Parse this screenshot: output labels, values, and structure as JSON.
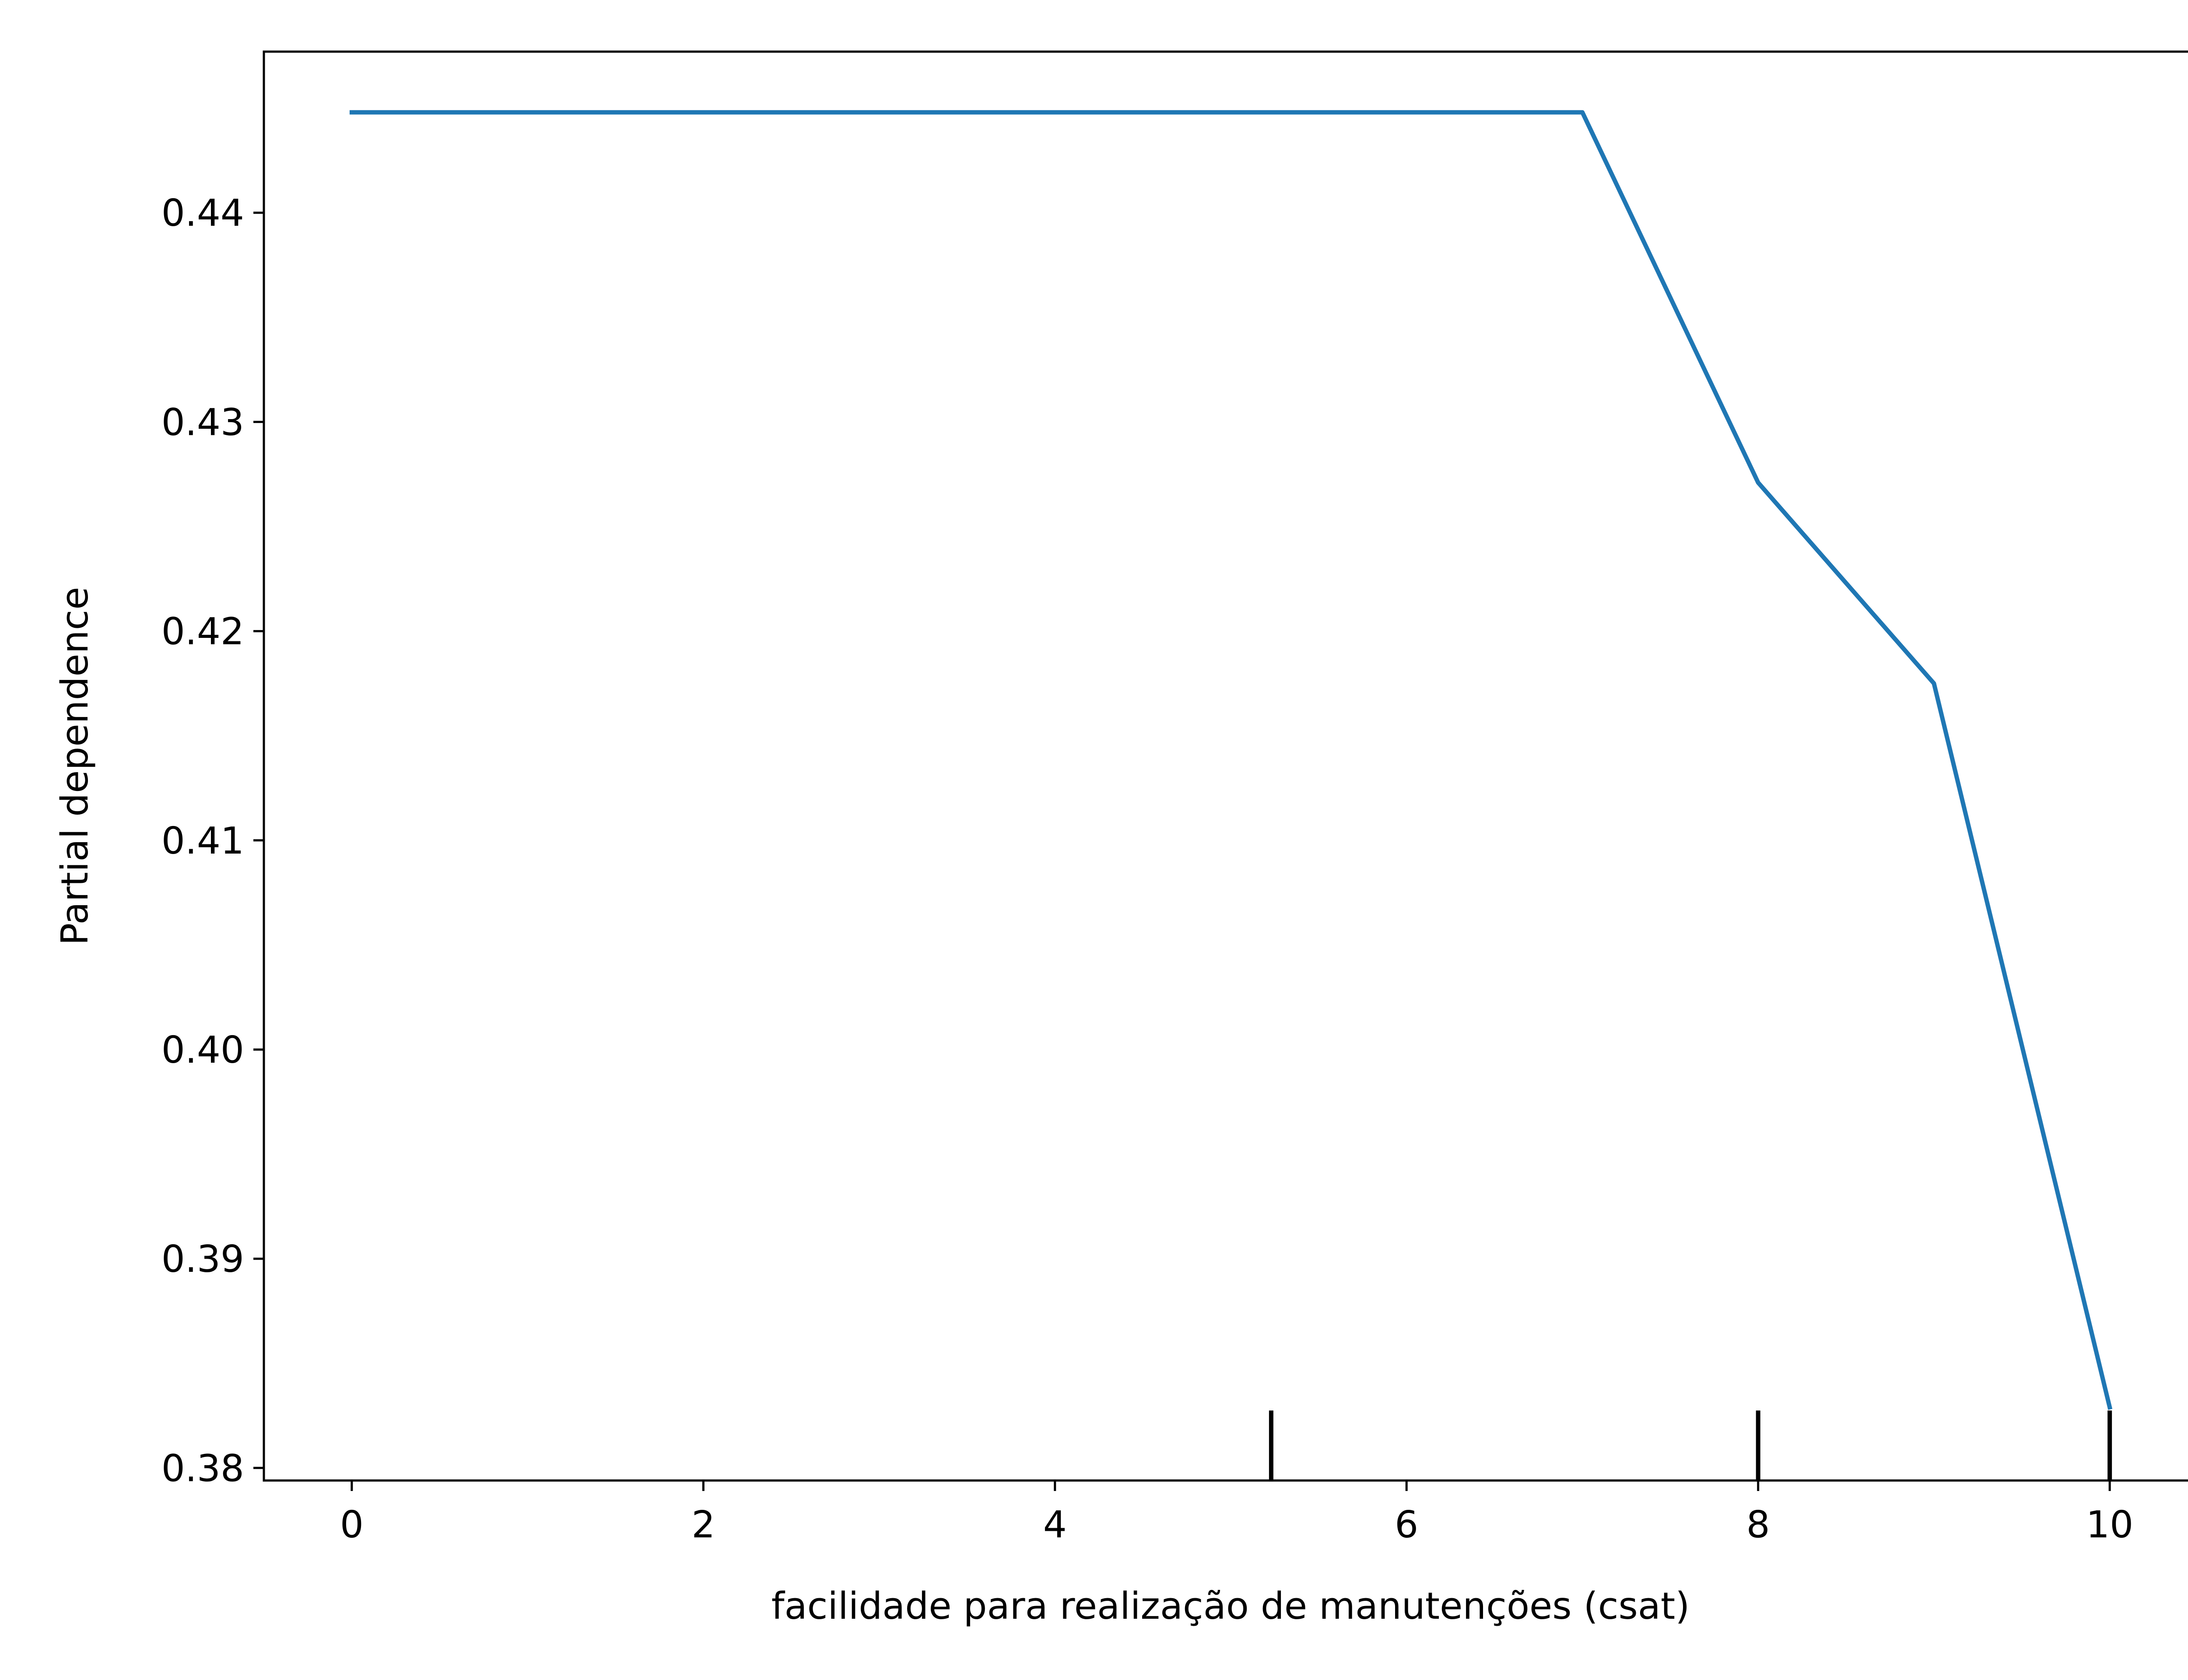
{
  "chart_data": {
    "type": "line",
    "title": "",
    "xlabel": "facilidade para realização de manutenções (csat)",
    "ylabel": "Partial dependence",
    "xlim": [
      -0.5,
      10.5
    ],
    "ylim": [
      0.3794,
      0.4477
    ],
    "x_ticks": [
      0,
      2,
      4,
      6,
      8,
      10
    ],
    "x_tick_labels": [
      "0",
      "2",
      "4",
      "6",
      "8",
      "10"
    ],
    "y_ticks": [
      0.38,
      0.39,
      0.4,
      0.41,
      0.42,
      0.43,
      0.44
    ],
    "y_tick_labels": [
      "0.38",
      "0.39",
      "0.40",
      "0.41",
      "0.42",
      "0.43",
      "0.44"
    ],
    "grid": false,
    "series": [
      {
        "color": "#1f77b4",
        "x": [
          0,
          7,
          8,
          9,
          10
        ],
        "y": [
          0.4448,
          0.4448,
          0.4271,
          0.4175,
          0.3829
        ]
      }
    ],
    "rug": {
      "color": "#000000",
      "x": [
        5.23,
        8,
        10
      ]
    }
  }
}
